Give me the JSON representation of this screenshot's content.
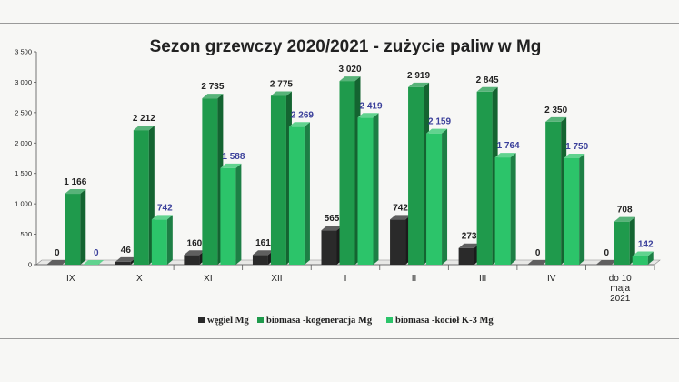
{
  "chart_data": {
    "type": "bar",
    "title": "Sezon grzewczy 2020/2021 - zużycie paliw w Mg",
    "categories": [
      "IX",
      "X",
      "XI",
      "XII",
      "I",
      "II",
      "III",
      "IV",
      "do 10 maja 2021"
    ],
    "series": [
      {
        "name": "węgiel Mg",
        "color": "#2a2a2a",
        "label_color": "#222222",
        "values": [
          0,
          46,
          160,
          161,
          565,
          742,
          273,
          0,
          0
        ],
        "labels": [
          "0",
          "46",
          "160",
          "161",
          "565",
          "742",
          "273",
          "0",
          "0"
        ]
      },
      {
        "name": "biomasa -kogeneracja Mg",
        "color": "#1f9a4c",
        "label_color": "#222222",
        "values": [
          1166,
          2212,
          2735,
          2775,
          3020,
          2919,
          2845,
          2350,
          708
        ],
        "labels": [
          "1 166",
          "2 212",
          "2 735",
          "2 775",
          "3 020",
          "2 919",
          "2 845",
          "2 350",
          "708"
        ]
      },
      {
        "name": "biomasa -kocioł K-3 Mg",
        "color": "#2cc46a",
        "label_color": "#3a3f9a",
        "values": [
          0,
          742,
          1588,
          2269,
          2419,
          2159,
          1764,
          1750,
          142
        ],
        "labels": [
          "0",
          "742",
          "1 588",
          "2 269",
          "2 419",
          "2 159",
          "1 764",
          "1 750",
          "142"
        ]
      }
    ],
    "ylim": [
      0,
      3500
    ],
    "yticks": [
      0,
      500,
      1000,
      1500,
      2000,
      2500,
      3000,
      3500
    ],
    "ytick_labels": [
      "0",
      "500",
      "1 000",
      "1 500",
      "2 000",
      "2 500",
      "3 000",
      "3 500"
    ],
    "legend_position": "bottom",
    "grid": false
  }
}
